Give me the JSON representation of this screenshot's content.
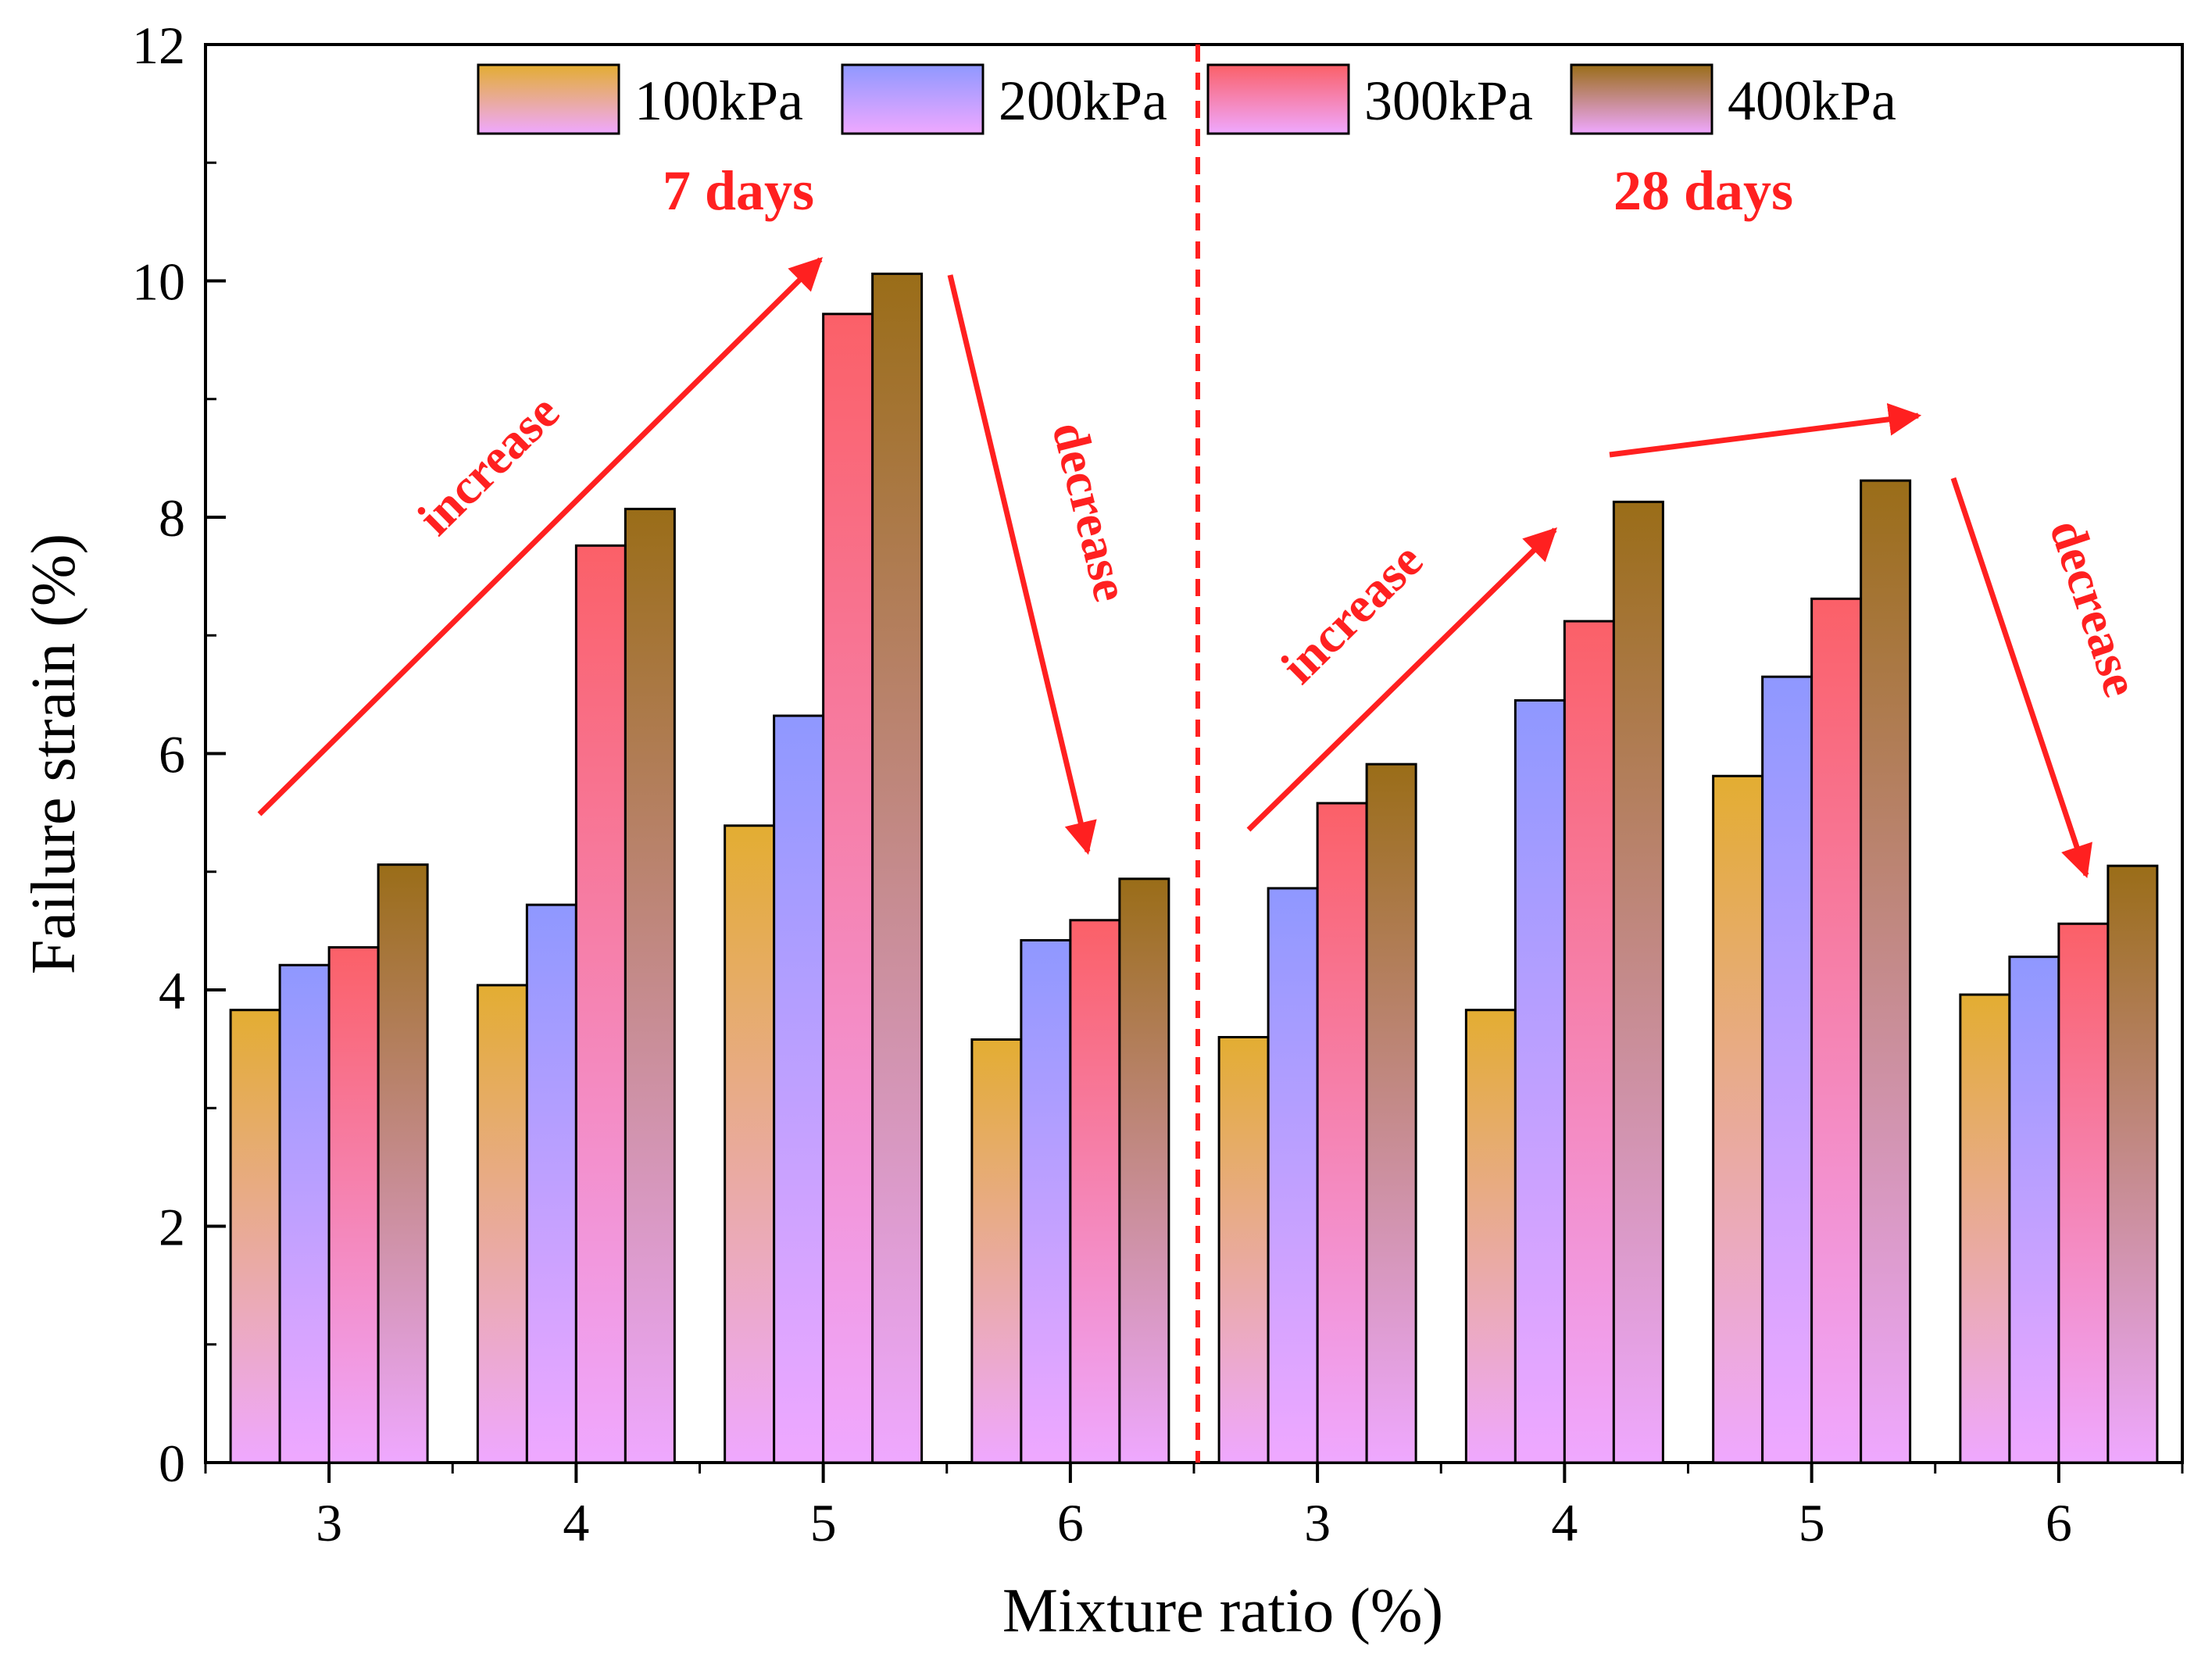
{
  "chart_data": {
    "type": "bar",
    "xlabel": "Mixture ratio (%)",
    "ylabel": "Failure strain (%)",
    "ylim": [
      0,
      12
    ],
    "yticks": [
      0,
      2,
      4,
      6,
      8,
      10,
      12
    ],
    "categories": [
      "3",
      "4",
      "5",
      "6",
      "3",
      "4",
      "5",
      "6"
    ],
    "series": [
      {
        "name": "100kPa",
        "color_top": "#e3ad32",
        "values": [
          3.83,
          4.04,
          5.39,
          3.58,
          3.6,
          3.83,
          5.81,
          3.96
        ]
      },
      {
        "name": "200kPa",
        "color_top": "#8f98ff",
        "values": [
          4.21,
          4.72,
          6.32,
          4.42,
          4.86,
          6.45,
          6.65,
          4.28
        ]
      },
      {
        "name": "300kPa",
        "color_top": "#fb6068",
        "values": [
          4.36,
          7.76,
          9.72,
          4.59,
          5.58,
          7.12,
          7.31,
          4.56
        ]
      },
      {
        "name": "400kPa",
        "color_top": "#9a6d18",
        "values": [
          5.06,
          8.07,
          10.06,
          4.94,
          5.91,
          8.13,
          8.31,
          5.05
        ]
      }
    ],
    "gradient_bottom": "#efa8ff",
    "legend_position": "top-center",
    "divider_after_category": 4,
    "annotations": [
      {
        "text": "7 days"
      },
      {
        "text": "28 days"
      },
      {
        "text": "increase"
      },
      {
        "text": "decrease"
      },
      {
        "text": "increase"
      },
      {
        "text": "decrease"
      }
    ],
    "annotation_color": "#ff2020"
  }
}
